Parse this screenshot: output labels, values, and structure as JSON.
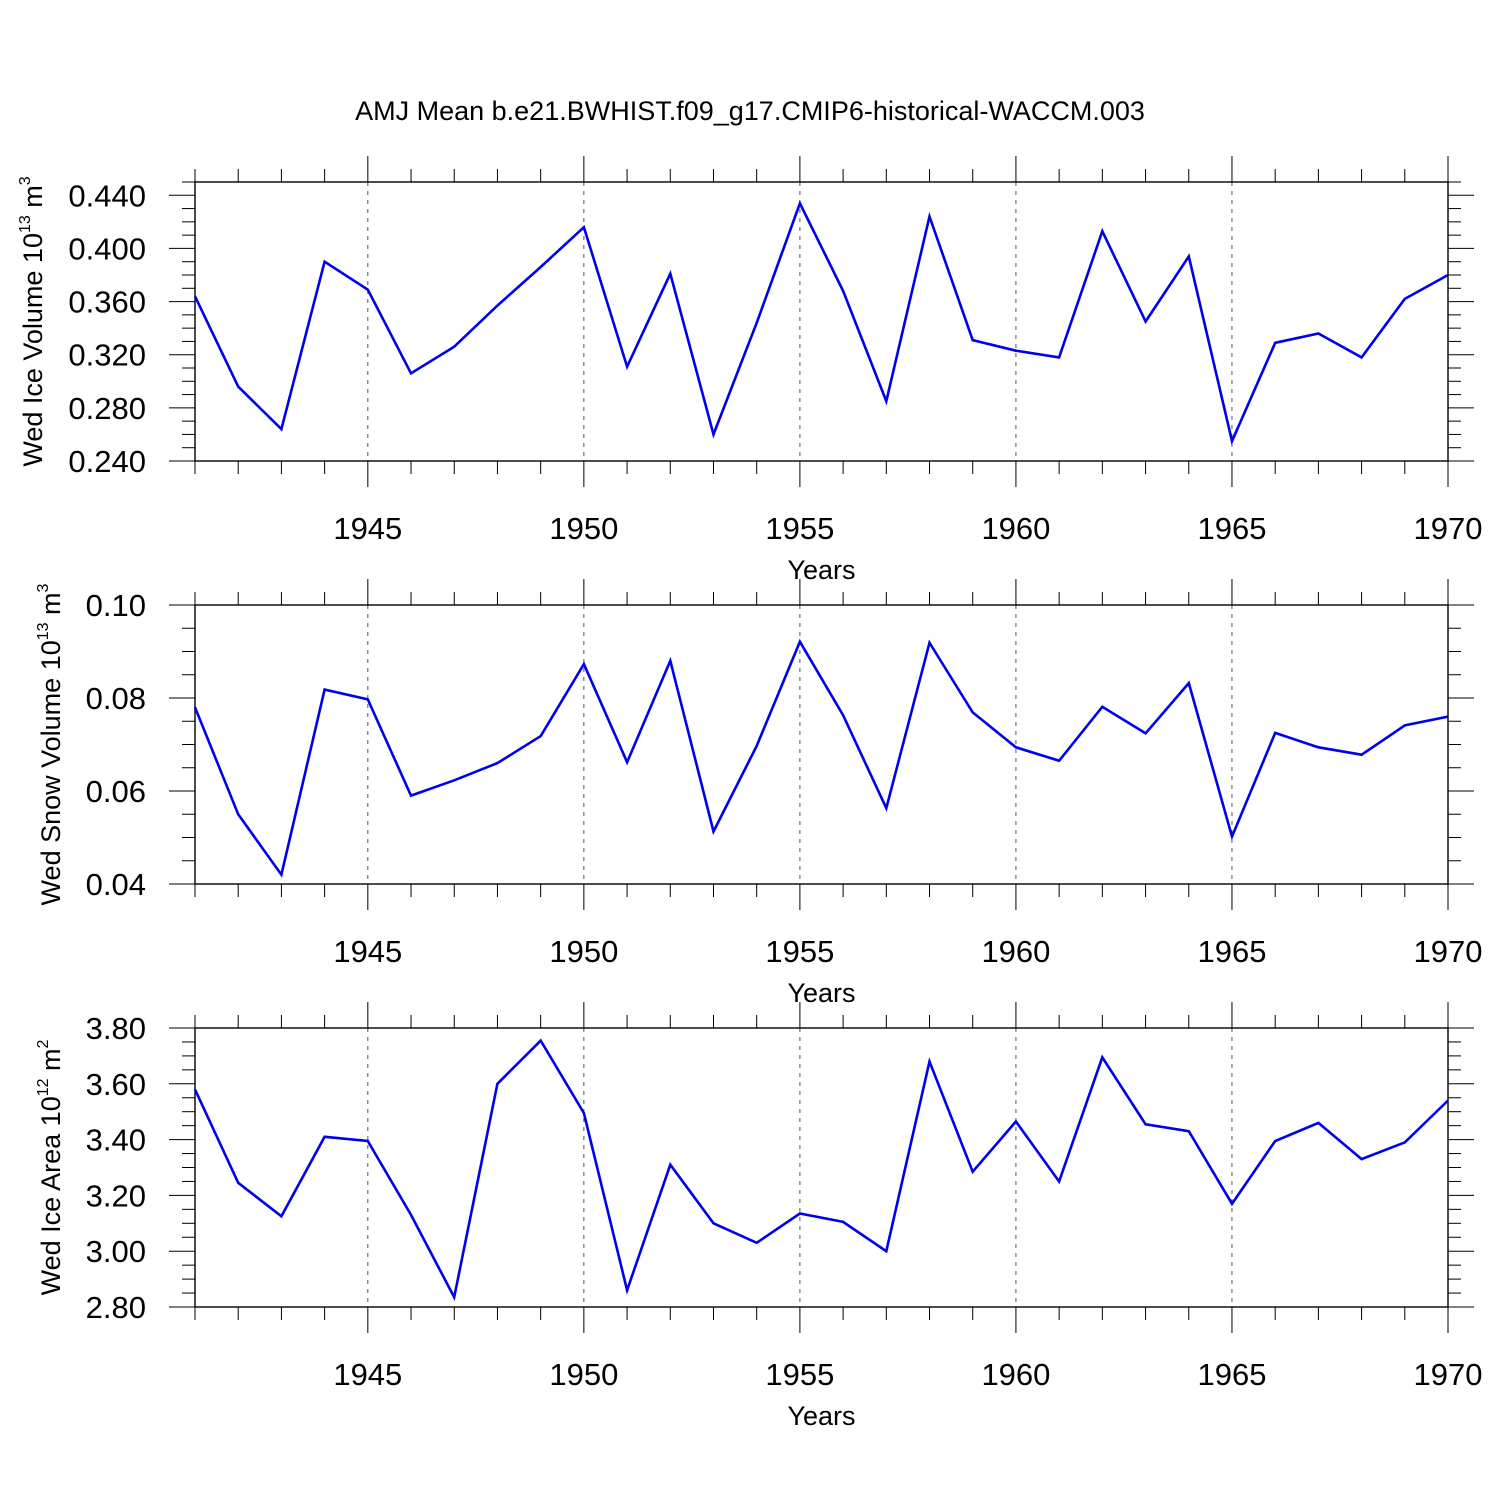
{
  "title": "AMJ Mean b.e21.BWHIST.f09_g17.CMIP6-historical-WACCM.003",
  "colors": {
    "line": "#0000ee",
    "axis": "#000000",
    "grid": "#555555"
  },
  "chart_data": [
    {
      "type": "line",
      "ylabel": {
        "main": "Wed Ice Volume 10",
        "exponent": "13",
        "unit": "m",
        "unit_exponent": "3"
      },
      "xlabel": "Years",
      "xlim": [
        1941,
        1970
      ],
      "ylim": [
        0.24,
        0.45
      ],
      "yticks": [
        0.24,
        0.28,
        0.32,
        0.36,
        0.4,
        0.44
      ],
      "ytick_labels": [
        "0.240",
        "0.280",
        "0.320",
        "0.360",
        "0.400",
        "0.440"
      ],
      "xticks": [
        1945,
        1950,
        1955,
        1960,
        1965,
        1970
      ],
      "xtick_labels": [
        "1945",
        "1950",
        "1955",
        "1960",
        "1965",
        "1970"
      ],
      "grid_x": [
        1945,
        1950,
        1955,
        1960,
        1965
      ],
      "x": [
        1941,
        1942,
        1943,
        1944,
        1945,
        1946,
        1947,
        1948,
        1949,
        1950,
        1951,
        1952,
        1953,
        1954,
        1955,
        1956,
        1957,
        1958,
        1959,
        1960,
        1961,
        1962,
        1963,
        1964,
        1965,
        1966,
        1967,
        1968,
        1969,
        1970
      ],
      "values": [
        0.364,
        0.296,
        0.264,
        0.39,
        0.369,
        0.306,
        0.326,
        0.357,
        0.386,
        0.416,
        0.311,
        0.381,
        0.26,
        0.344,
        0.434,
        0.368,
        0.285,
        0.424,
        0.331,
        0.323,
        0.318,
        0.413,
        0.345,
        0.394,
        0.255,
        0.329,
        0.336,
        0.318,
        0.362,
        0.38
      ]
    },
    {
      "type": "line",
      "ylabel": {
        "main": "Wed Snow Volume 10",
        "exponent": "13",
        "unit": "m",
        "unit_exponent": "3"
      },
      "xlabel": "Years",
      "xlim": [
        1941,
        1970
      ],
      "ylim": [
        0.04,
        0.1
      ],
      "yticks": [
        0.04,
        0.06,
        0.08,
        0.1
      ],
      "ytick_labels": [
        "0.04",
        "0.06",
        "0.08",
        "0.10"
      ],
      "xticks": [
        1945,
        1950,
        1955,
        1960,
        1965,
        1970
      ],
      "xtick_labels": [
        "1945",
        "1950",
        "1955",
        "1960",
        "1965",
        "1970"
      ],
      "grid_x": [
        1945,
        1950,
        1955,
        1960,
        1965
      ],
      "x": [
        1941,
        1942,
        1943,
        1944,
        1945,
        1946,
        1947,
        1948,
        1949,
        1950,
        1951,
        1952,
        1953,
        1954,
        1955,
        1956,
        1957,
        1958,
        1959,
        1960,
        1961,
        1962,
        1963,
        1964,
        1965,
        1966,
        1967,
        1968,
        1969,
        1970
      ],
      "values": [
        0.078,
        0.055,
        0.042,
        0.0818,
        0.0797,
        0.059,
        0.0623,
        0.066,
        0.0718,
        0.0873,
        0.0662,
        0.088,
        0.0513,
        0.0697,
        0.0921,
        0.0763,
        0.0563,
        0.0919,
        0.0769,
        0.0694,
        0.0665,
        0.0781,
        0.0724,
        0.0832,
        0.0502,
        0.0725,
        0.0694,
        0.0678,
        0.0741,
        0.076
      ]
    },
    {
      "type": "line",
      "ylabel": {
        "main": "Wed Ice Area 10",
        "exponent": "12",
        "unit": "m",
        "unit_exponent": "2"
      },
      "xlabel": "Years",
      "xlim": [
        1941,
        1970
      ],
      "ylim": [
        2.8,
        3.8
      ],
      "yticks": [
        2.8,
        3.0,
        3.2,
        3.4,
        3.6,
        3.8
      ],
      "ytick_labels": [
        "2.80",
        "3.00",
        "3.20",
        "3.40",
        "3.60",
        "3.80"
      ],
      "xticks": [
        1945,
        1950,
        1955,
        1960,
        1965,
        1970
      ],
      "xtick_labels": [
        "1945",
        "1950",
        "1955",
        "1960",
        "1965",
        "1970"
      ],
      "grid_x": [
        1945,
        1950,
        1955,
        1960,
        1965
      ],
      "x": [
        1941,
        1942,
        1943,
        1944,
        1945,
        1946,
        1947,
        1948,
        1949,
        1950,
        1951,
        1952,
        1953,
        1954,
        1955,
        1956,
        1957,
        1958,
        1959,
        1960,
        1961,
        1962,
        1963,
        1964,
        1965,
        1966,
        1967,
        1968,
        1969,
        1970
      ],
      "values": [
        3.58,
        3.245,
        3.125,
        3.41,
        3.395,
        3.13,
        2.835,
        3.6,
        3.755,
        3.495,
        2.86,
        3.31,
        3.1,
        3.03,
        3.135,
        3.105,
        3.0,
        3.68,
        3.285,
        3.465,
        3.25,
        3.695,
        3.455,
        3.43,
        3.17,
        3.395,
        3.46,
        3.33,
        3.39,
        3.54
      ]
    }
  ]
}
